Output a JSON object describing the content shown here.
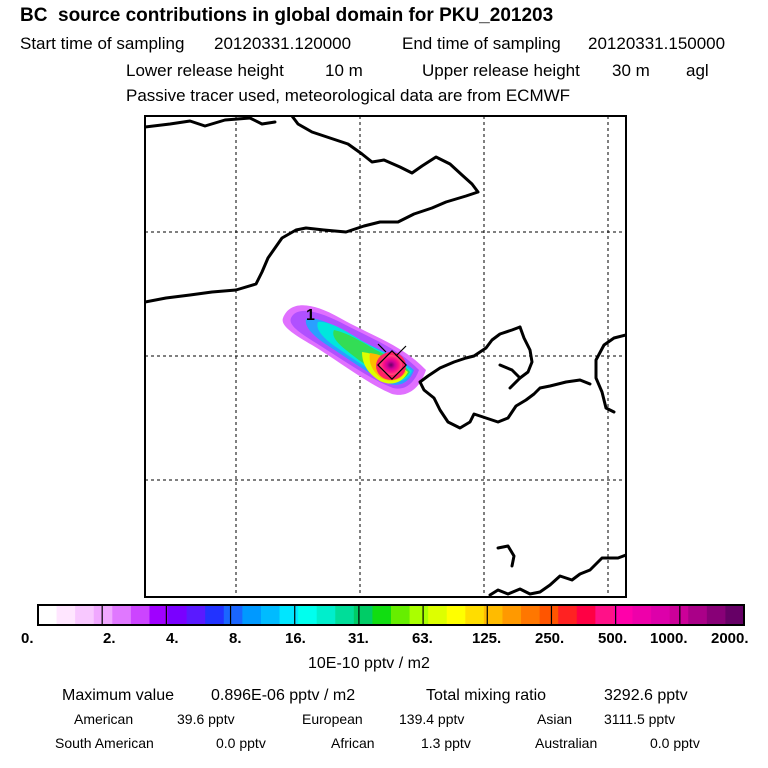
{
  "header": {
    "title": "BC  source contributions in global domain for PKU_201203",
    "start_label": "Start time of sampling",
    "start_value": "20120331.120000",
    "end_label": "End time of sampling",
    "end_value": "20120331.150000",
    "lower_label": "Lower release height",
    "lower_value": "10 m",
    "upper_label": "Upper release height",
    "upper_value": "30 m",
    "upper_unit": "agl",
    "note": "Passive tracer used, meteorological data are from ECMWF"
  },
  "map": {
    "marker_label": "1"
  },
  "colorbar": {
    "labels": [
      "0.",
      "2.",
      "4.",
      "8.",
      "16.",
      "31.",
      "63.",
      "125.",
      "250.",
      "500.",
      "1000.",
      "2000."
    ],
    "unit": "10E-10 pptv / m2",
    "colors": [
      "#ffffff",
      "#ffe6ff",
      "#f8c8ff",
      "#f0a8ff",
      "#e078ff",
      "#cc44ff",
      "#a000ff",
      "#7a00ff",
      "#5a1aff",
      "#2233ff",
      "#1a66ff",
      "#0099ff",
      "#00bbff",
      "#00e6ff",
      "#00ffee",
      "#00eecc",
      "#00dd99",
      "#00cc66",
      "#11dd11",
      "#66ee00",
      "#aaff00",
      "#ddff00",
      "#ffff00",
      "#ffdd00",
      "#ffbb00",
      "#ff9900",
      "#ff7700",
      "#ff5500",
      "#ff2222",
      "#ff0044",
      "#ff1188",
      "#ff00aa",
      "#ee00aa",
      "#dd00aa",
      "#cc0099",
      "#aa0088",
      "#880077",
      "#660066"
    ]
  },
  "stats": {
    "max_label": "Maximum value",
    "max_value": "0.896E-06 pptv / m2",
    "total_label": "Total mixing ratio",
    "total_value": "3292.6 pptv",
    "american_label": "American",
    "american_value": "39.6 pptv",
    "european_label": "European",
    "european_value": "139.4 pptv",
    "asian_label": "Asian",
    "asian_value": "3111.5 pptv",
    "south_american_label": "South American",
    "south_american_value": "0.0 pptv",
    "african_label": "African",
    "african_value": "1.3 pptv",
    "australian_label": "Australian",
    "australian_value": "0.0 pptv"
  }
}
